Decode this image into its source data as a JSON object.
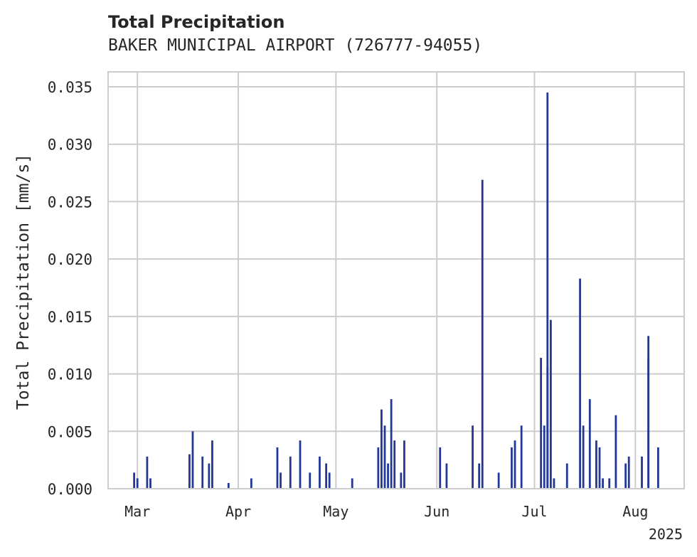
{
  "chart_data": {
    "type": "bar",
    "title": "Total Precipitation",
    "subtitle": "BAKER MUNICIPAL AIRPORT (726777-94055)",
    "ylabel": "Total Precipitation [mm/s]",
    "xlabel": "",
    "x_range": [
      "2025-02-20",
      "2025-08-16"
    ],
    "ylim": [
      0,
      0.0363
    ],
    "y_ticks": [
      "0.000",
      "0.005",
      "0.010",
      "0.015",
      "0.020",
      "0.025",
      "0.030",
      "0.035"
    ],
    "x_ticks": [
      {
        "date": "2025-03-01",
        "label": "Mar"
      },
      {
        "date": "2025-04-01",
        "label": "Apr"
      },
      {
        "date": "2025-05-01",
        "label": "May"
      },
      {
        "date": "2025-06-01",
        "label": "Jun"
      },
      {
        "date": "2025-07-01",
        "label": "Jul"
      },
      {
        "date": "2025-08-01",
        "label": "Aug"
      }
    ],
    "year_label": "2025",
    "grid": true,
    "color": "#233795",
    "points": [
      [
        "2025-02-28",
        0.0014
      ],
      [
        "2025-03-01",
        0.0009
      ],
      [
        "2025-03-04",
        0.0028
      ],
      [
        "2025-03-05",
        0.0009
      ],
      [
        "2025-03-17",
        0.003
      ],
      [
        "2025-03-18",
        0.005
      ],
      [
        "2025-03-21",
        0.0028
      ],
      [
        "2025-03-23",
        0.0022
      ],
      [
        "2025-03-24",
        0.0042
      ],
      [
        "2025-03-29",
        0.0005
      ],
      [
        "2025-04-05",
        0.0009
      ],
      [
        "2025-04-13",
        0.0036
      ],
      [
        "2025-04-14",
        0.0014
      ],
      [
        "2025-04-17",
        0.0028
      ],
      [
        "2025-04-20",
        0.0042
      ],
      [
        "2025-04-23",
        0.0014
      ],
      [
        "2025-04-26",
        0.0028
      ],
      [
        "2025-04-28",
        0.0022
      ],
      [
        "2025-04-29",
        0.0014
      ],
      [
        "2025-05-06",
        0.0009
      ],
      [
        "2025-05-14",
        0.0036
      ],
      [
        "2025-05-15",
        0.0069
      ],
      [
        "2025-05-16",
        0.0055
      ],
      [
        "2025-05-17",
        0.0022
      ],
      [
        "2025-05-18",
        0.0078
      ],
      [
        "2025-05-19",
        0.0042
      ],
      [
        "2025-05-21",
        0.0014
      ],
      [
        "2025-05-22",
        0.0042
      ],
      [
        "2025-06-02",
        0.0036
      ],
      [
        "2025-06-04",
        0.0022
      ],
      [
        "2025-06-12",
        0.0055
      ],
      [
        "2025-06-14",
        0.0022
      ],
      [
        "2025-06-15",
        0.0269
      ],
      [
        "2025-06-20",
        0.0014
      ],
      [
        "2025-06-24",
        0.0036
      ],
      [
        "2025-06-25",
        0.0042
      ],
      [
        "2025-06-27",
        0.0055
      ],
      [
        "2025-07-03",
        0.0114
      ],
      [
        "2025-07-04",
        0.0055
      ],
      [
        "2025-07-05",
        0.0106
      ],
      [
        "2025-07-05",
        0.0345
      ],
      [
        "2025-07-06",
        0.0147
      ],
      [
        "2025-07-07",
        0.0009
      ],
      [
        "2025-07-11",
        0.0022
      ],
      [
        "2025-07-15",
        0.0183
      ],
      [
        "2025-07-16",
        0.0055
      ],
      [
        "2025-07-18",
        0.0078
      ],
      [
        "2025-07-20",
        0.0042
      ],
      [
        "2025-07-21",
        0.0036
      ],
      [
        "2025-07-22",
        0.0009
      ],
      [
        "2025-07-24",
        0.0009
      ],
      [
        "2025-07-26",
        0.0064
      ],
      [
        "2025-07-29",
        0.0022
      ],
      [
        "2025-07-30",
        0.0028
      ],
      [
        "2025-08-03",
        0.0028
      ],
      [
        "2025-08-05",
        0.0114
      ],
      [
        "2025-08-05",
        0.0133
      ],
      [
        "2025-08-08",
        0.0036
      ]
    ]
  }
}
